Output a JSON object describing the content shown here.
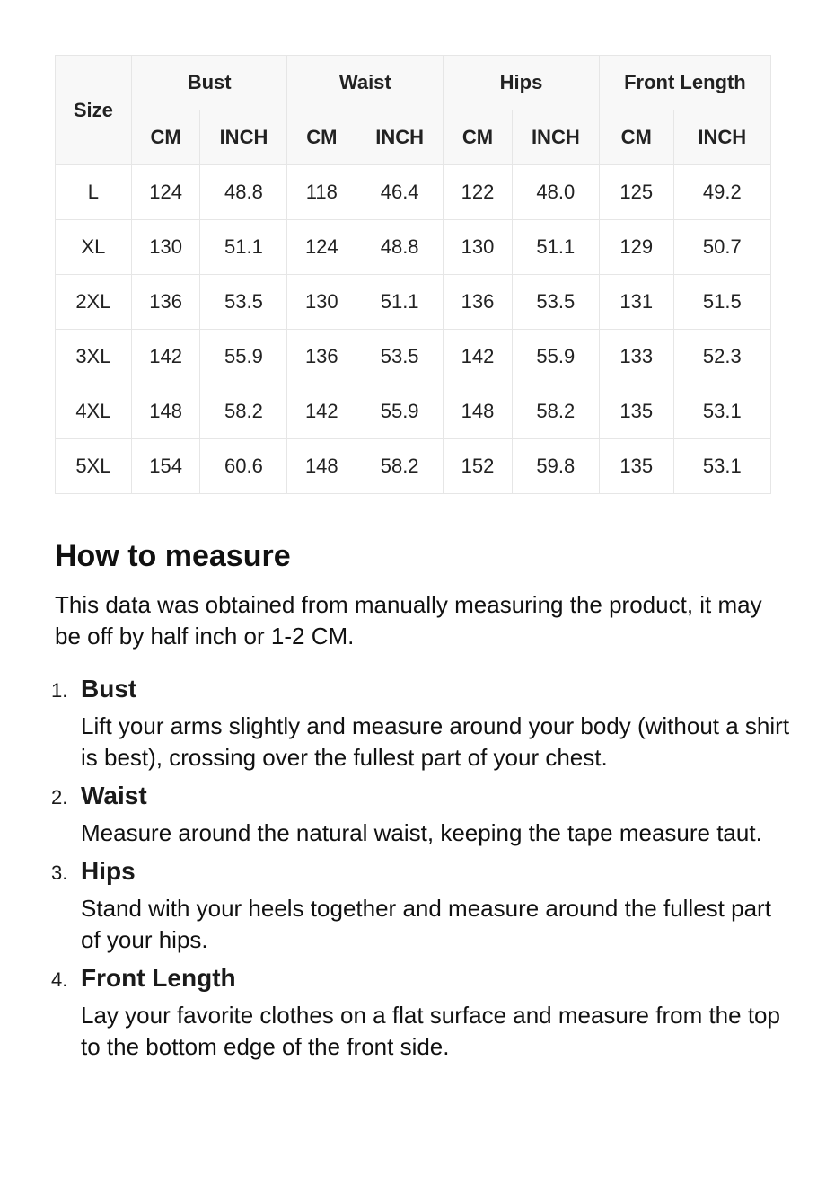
{
  "table": {
    "size_header": "Size",
    "groups": [
      "Bust",
      "Waist",
      "Hips",
      "Front Length"
    ],
    "units": [
      "CM",
      "INCH",
      "CM",
      "INCH",
      "CM",
      "INCH",
      "CM",
      "INCH"
    ],
    "rows": [
      [
        "L",
        "124",
        "48.8",
        "118",
        "46.4",
        "122",
        "48.0",
        "125",
        "49.2"
      ],
      [
        "XL",
        "130",
        "51.1",
        "124",
        "48.8",
        "130",
        "51.1",
        "129",
        "50.7"
      ],
      [
        "2XL",
        "136",
        "53.5",
        "130",
        "51.1",
        "136",
        "53.5",
        "131",
        "51.5"
      ],
      [
        "3XL",
        "142",
        "55.9",
        "136",
        "53.5",
        "142",
        "55.9",
        "133",
        "52.3"
      ],
      [
        "4XL",
        "148",
        "58.2",
        "142",
        "55.9",
        "148",
        "58.2",
        "135",
        "53.1"
      ],
      [
        "5XL",
        "154",
        "60.6",
        "148",
        "58.2",
        "152",
        "59.8",
        "135",
        "53.1"
      ]
    ]
  },
  "measure": {
    "title": "How to measure",
    "intro": "This data was obtained from manually measuring the product, it may be off by half inch or 1-2 CM.",
    "items": [
      {
        "num": "1.",
        "title": "Bust",
        "desc": "Lift your arms slightly and measure around your body (without a shirt is best), crossing over the fullest part of your chest."
      },
      {
        "num": "2.",
        "title": "Waist",
        "desc": "Measure around the natural waist, keeping the tape measure taut."
      },
      {
        "num": "3.",
        "title": "Hips",
        "desc": "Stand with your heels together and measure around the fullest part of your hips."
      },
      {
        "num": "4.",
        "title": "Front Length",
        "desc": "Lay your favorite clothes on a flat surface and measure from the top to the bottom edge of the front side."
      }
    ]
  }
}
